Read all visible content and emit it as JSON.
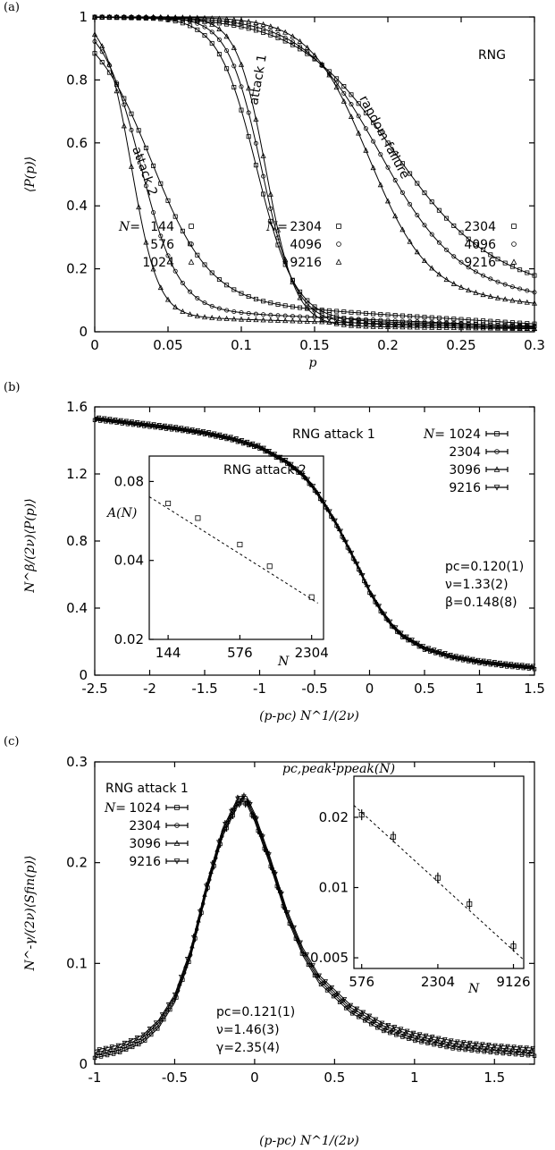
{
  "chart_data": [
    {
      "panel": "(a)",
      "type": "line",
      "xlabel": "p",
      "ylabel": "⟨P(p)⟩",
      "xlim": [
        0,
        0.3
      ],
      "ylim": [
        0,
        1
      ],
      "xticks": [
        "0",
        "0.05",
        "0.1",
        "0.15",
        "0.2",
        "0.25",
        "0.3"
      ],
      "yticks": [
        "0",
        "0.2",
        "0.4",
        "0.6",
        "0.8",
        "1"
      ],
      "label_rng": "RNG",
      "curve_labels": [
        "attack 2",
        "attack 1",
        "random failure"
      ],
      "legends": [
        {
          "prefix": "N=",
          "entries": [
            {
              "n": "144",
              "marker": "square"
            },
            {
              "n": "576",
              "marker": "circle"
            },
            {
              "n": "1024",
              "marker": "triangle"
            }
          ]
        },
        {
          "prefix": "N=",
          "entries": [
            {
              "n": "2304",
              "marker": "square"
            },
            {
              "n": "4096",
              "marker": "circle"
            },
            {
              "n": "9216",
              "marker": "triangle"
            }
          ]
        },
        {
          "prefix": "",
          "entries": [
            {
              "n": "2304",
              "marker": "square"
            },
            {
              "n": "4096",
              "marker": "circle"
            },
            {
              "n": "9216",
              "marker": "triangle"
            }
          ]
        }
      ],
      "series": [
        {
          "group": "attack 2",
          "name": "N=144",
          "pc": 0.038,
          "w": 0.02,
          "tail": 0.1
        },
        {
          "group": "attack 2",
          "name": "N=576",
          "pc": 0.031,
          "w": 0.013,
          "tail": 0.07
        },
        {
          "group": "attack 2",
          "name": "N=1024",
          "pc": 0.025,
          "w": 0.009,
          "tail": 0.05
        },
        {
          "group": "attack 1",
          "name": "N=2304",
          "pc": 0.1105,
          "w": 0.013,
          "tail": 0.04
        },
        {
          "group": "attack 1",
          "name": "N=4096",
          "pc": 0.114,
          "w": 0.0115,
          "tail": 0.03
        },
        {
          "group": "attack 1",
          "name": "N=9216",
          "pc": 0.117,
          "w": 0.01,
          "tail": 0.02
        },
        {
          "group": "random failure",
          "name": "N=2304",
          "pc": 0.2,
          "w": 0.032,
          "tail": 0.2
        },
        {
          "group": "random failure",
          "name": "N=4096",
          "pc": 0.193,
          "w": 0.026,
          "tail": 0.16
        },
        {
          "group": "random failure",
          "name": "N=9216",
          "pc": 0.186,
          "w": 0.02,
          "tail": 0.13
        }
      ]
    },
    {
      "panel": "(b)",
      "type": "line",
      "xlabel": "(p-pc) N^1/(2ν)",
      "ylabel": "N^β/(2ν)⟨P(p)⟩",
      "xlim": [
        -2.5,
        1.5
      ],
      "ylim": [
        0,
        1.6
      ],
      "xticks": [
        "-2.5",
        "-2",
        "-1.5",
        "-1",
        "-0.5",
        "0",
        "0.5",
        "1",
        "1.5"
      ],
      "yticks": [
        "0",
        "0.4",
        "0.8",
        "1.2",
        "1.6"
      ],
      "title": "RNG attack 1",
      "legend_prefix": "N=",
      "legend": [
        "1024",
        "2304",
        "3096",
        "9216"
      ],
      "params": [
        "pc=0.120(1)",
        "ν=1.33(2)",
        "β=0.148(8)"
      ],
      "collapse_points": [
        [
          -2.5,
          1.53
        ],
        [
          -2.25,
          1.51
        ],
        [
          -2.0,
          1.49
        ],
        [
          -1.75,
          1.47
        ],
        [
          -1.5,
          1.445
        ],
        [
          -1.25,
          1.41
        ],
        [
          -1.0,
          1.36
        ],
        [
          -0.75,
          1.27
        ],
        [
          -0.6,
          1.19
        ],
        [
          -0.5,
          1.11
        ],
        [
          -0.4,
          1.01
        ],
        [
          -0.3,
          0.9
        ],
        [
          -0.2,
          0.77
        ],
        [
          -0.1,
          0.64
        ],
        [
          0.0,
          0.5
        ],
        [
          0.1,
          0.39
        ],
        [
          0.2,
          0.3
        ],
        [
          0.3,
          0.235
        ],
        [
          0.5,
          0.16
        ],
        [
          0.75,
          0.11
        ],
        [
          1.0,
          0.08
        ],
        [
          1.25,
          0.06
        ],
        [
          1.5,
          0.045
        ]
      ],
      "inset": {
        "title": "RNG attack 2",
        "xlabel": "N",
        "ylabel": "A(N)",
        "xscale": "log",
        "yscale": "log",
        "xlim": [
          100,
          2900
        ],
        "ylim": [
          0.02,
          0.1
        ],
        "xticks": [
          "144",
          "576",
          "2304"
        ],
        "yticks": [
          "0.02",
          "0.04",
          "0.08"
        ],
        "x": [
          144,
          256,
          576,
          1024,
          2304
        ],
        "y": [
          0.066,
          0.058,
          0.046,
          0.038,
          0.029
        ]
      }
    },
    {
      "panel": "(c)",
      "type": "line",
      "xlabel": "(p-pc) N^1/(2ν)",
      "ylabel": "N^-γ/(2ν)⟨Sfin(p)⟩",
      "xlim": [
        -1,
        1.75
      ],
      "ylim": [
        0,
        0.3
      ],
      "xticks": [
        "-1",
        "-0.5",
        "0",
        "0.5",
        "1",
        "1.5"
      ],
      "yticks": [
        "0",
        "0.1",
        "0.2",
        "0.3"
      ],
      "title": "RNG attack 1",
      "legend_prefix": "N=",
      "legend": [
        "1024",
        "2304",
        "3096",
        "9216"
      ],
      "params": [
        "pc=0.121(1)",
        "ν=1.46(3)",
        "γ=2.35(4)"
      ],
      "collapse_points": [
        [
          -1.0,
          0.01
        ],
        [
          -0.85,
          0.015
        ],
        [
          -0.7,
          0.025
        ],
        [
          -0.6,
          0.04
        ],
        [
          -0.5,
          0.065
        ],
        [
          -0.4,
          0.11
        ],
        [
          -0.3,
          0.175
        ],
        [
          -0.2,
          0.23
        ],
        [
          -0.1,
          0.262
        ],
        [
          -0.05,
          0.262
        ],
        [
          0.0,
          0.245
        ],
        [
          0.1,
          0.2
        ],
        [
          0.2,
          0.15
        ],
        [
          0.3,
          0.112
        ],
        [
          0.4,
          0.085
        ],
        [
          0.6,
          0.055
        ],
        [
          0.8,
          0.037
        ],
        [
          1.0,
          0.027
        ],
        [
          1.25,
          0.019
        ],
        [
          1.5,
          0.015
        ],
        [
          1.75,
          0.012
        ]
      ],
      "inset": {
        "title": "pc,peak-ppeak(N)",
        "xlabel": "N",
        "xscale": "log",
        "yscale": "log",
        "xlim": [
          500,
          11000
        ],
        "ylim": [
          0.0045,
          0.03
        ],
        "xticks": [
          "576",
          "2304",
          "9126"
        ],
        "yticks": [
          "0.005",
          "0.01",
          "0.02"
        ],
        "x": [
          576,
          1024,
          2304,
          4096,
          9126
        ],
        "y": [
          0.0205,
          0.0165,
          0.011,
          0.0085,
          0.0056
        ]
      }
    }
  ]
}
